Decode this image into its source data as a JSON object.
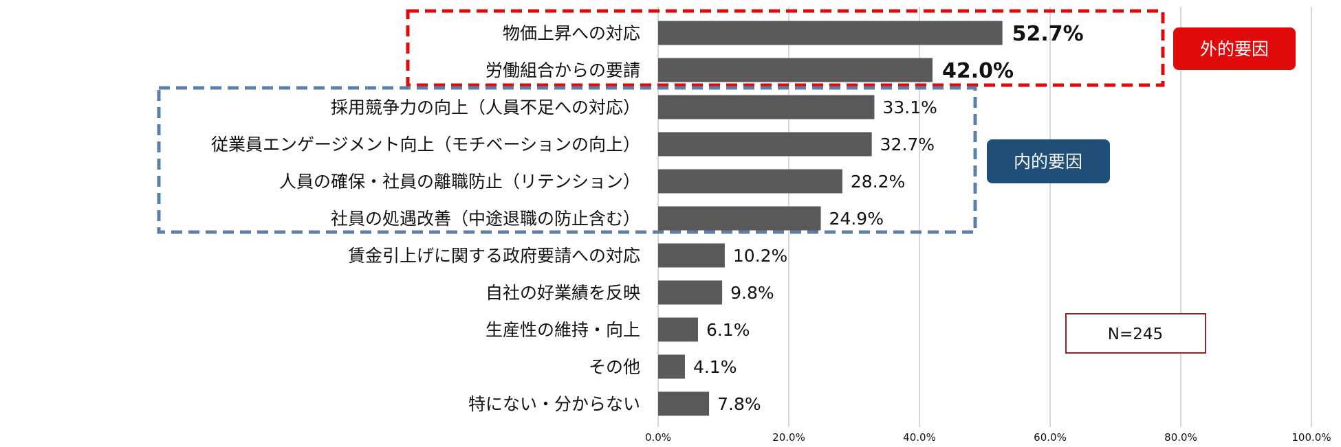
{
  "chart_data": {
    "type": "bar",
    "orientation": "horizontal",
    "categories": [
      "物価上昇への対応",
      "労働組合からの要請",
      "採用競争力の向上（人員不足への対応）",
      "従業員エンゲージメント向上（モチベーションの向上）",
      "人員の確保・社員の離職防止（リテンション）",
      "社員の処遇改善（中途退職の防止含む）",
      "賃金引上げに関する政府要請への対応",
      "自社の好業績を反映",
      "生産性の維持・向上",
      "その他",
      "特にない・分からない"
    ],
    "values": [
      52.7,
      42.0,
      33.1,
      32.7,
      28.2,
      24.9,
      10.2,
      9.8,
      6.1,
      4.1,
      7.8
    ],
    "value_labels": [
      "52.7%",
      "42.0%",
      "33.1%",
      "32.7%",
      "28.2%",
      "24.9%",
      "10.2%",
      "9.8%",
      "6.1%",
      "4.1%",
      "7.8%"
    ],
    "emphasized_labels": [
      0,
      1
    ],
    "xlim": [
      0,
      100
    ],
    "x_ticks": [
      0,
      20,
      40,
      60,
      80,
      100
    ],
    "x_tick_labels": [
      "0.0%",
      "20.0%",
      "40.0%",
      "60.0%",
      "80.0%",
      "100.0%"
    ],
    "grid": true,
    "bar_color": "#595959",
    "groups": [
      {
        "label": "外的要因",
        "categories": [
          0,
          1
        ],
        "color": "#e00a0a"
      },
      {
        "label": "内的要因",
        "categories": [
          2,
          3,
          4,
          5
        ],
        "color": "#5a7fa8",
        "tag_color": "#1f4e79"
      }
    ],
    "annotation": "N=245",
    "annotation_border_color": "#a32022"
  }
}
